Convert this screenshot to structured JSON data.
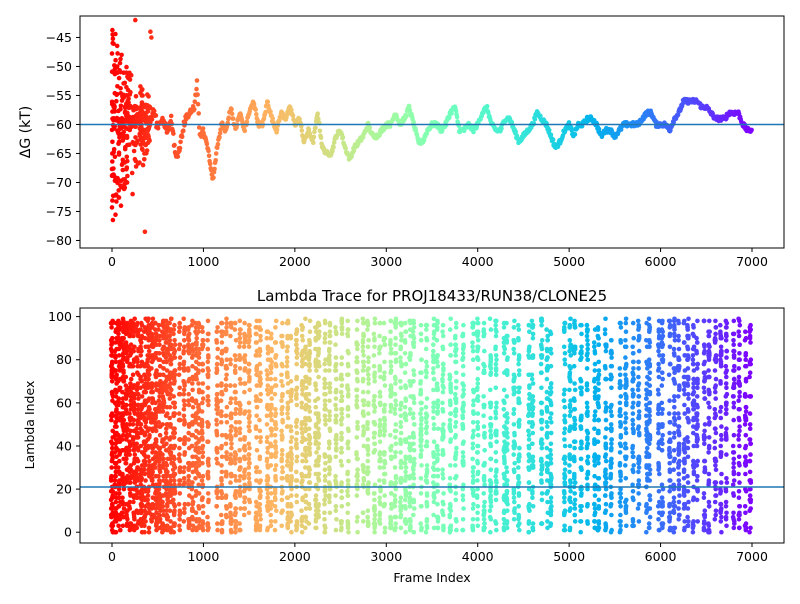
{
  "chart_data": [
    {
      "type": "scatter",
      "title": "",
      "xlabel": "",
      "ylabel": "ΔG (kT)",
      "xlim": [
        -350,
        7350
      ],
      "ylim": [
        -81.3,
        -41.3
      ],
      "xticks": [
        0,
        1000,
        2000,
        3000,
        4000,
        5000,
        6000,
        7000
      ],
      "yticks": [
        -80,
        -75,
        -70,
        -65,
        -60,
        -55,
        -50,
        -45
      ],
      "hline": -60,
      "hline_color": "#1f77b4",
      "colormap": "rainbow (reversed: red at frame 0, violet at frame 7000)",
      "x_range": [
        0,
        7000
      ],
      "trace": [
        [
          0,
          -60
        ],
        [
          50,
          -60
        ],
        [
          100,
          -60
        ],
        [
          150,
          -59
        ],
        [
          200,
          -60
        ],
        [
          250,
          -60
        ],
        [
          300,
          -58
        ],
        [
          350,
          -59
        ],
        [
          400,
          -61
        ],
        [
          450,
          -58
        ],
        [
          500,
          -60
        ],
        [
          550,
          -59
        ],
        [
          600,
          -61
        ],
        [
          650,
          -59
        ],
        [
          700,
          -66
        ],
        [
          750,
          -63
        ],
        [
          800,
          -59
        ],
        [
          850,
          -58
        ],
        [
          900,
          -57
        ],
        [
          930,
          -53
        ],
        [
          960,
          -62
        ],
        [
          1000,
          -61
        ],
        [
          1050,
          -64
        ],
        [
          1100,
          -70
        ],
        [
          1150,
          -64
        ],
        [
          1200,
          -60
        ],
        [
          1250,
          -61
        ],
        [
          1300,
          -57
        ],
        [
          1350,
          -61
        ],
        [
          1400,
          -58
        ],
        [
          1450,
          -61
        ],
        [
          1500,
          -58
        ],
        [
          1550,
          -56
        ],
        [
          1600,
          -60
        ],
        [
          1650,
          -60
        ],
        [
          1700,
          -56
        ],
        [
          1750,
          -59
        ],
        [
          1800,
          -61
        ],
        [
          1850,
          -58
        ],
        [
          1900,
          -59
        ],
        [
          1950,
          -57
        ],
        [
          2000,
          -60
        ],
        [
          2050,
          -59
        ],
        [
          2100,
          -63
        ],
        [
          2150,
          -61
        ],
        [
          2200,
          -63
        ],
        [
          2250,
          -58
        ],
        [
          2300,
          -64
        ],
        [
          2350,
          -65
        ],
        [
          2400,
          -65
        ],
        [
          2450,
          -62
        ],
        [
          2500,
          -61
        ],
        [
          2550,
          -64
        ],
        [
          2600,
          -66
        ],
        [
          2650,
          -64
        ],
        [
          2700,
          -63
        ],
        [
          2750,
          -62
        ],
        [
          2800,
          -60
        ],
        [
          2850,
          -62
        ],
        [
          2900,
          -62
        ],
        [
          2950,
          -61
        ],
        [
          3000,
          -60
        ],
        [
          3050,
          -60
        ],
        [
          3100,
          -58
        ],
        [
          3150,
          -60
        ],
        [
          3200,
          -59
        ],
        [
          3250,
          -57
        ],
        [
          3300,
          -60
        ],
        [
          3350,
          -63
        ],
        [
          3400,
          -63
        ],
        [
          3450,
          -61
        ],
        [
          3500,
          -60
        ],
        [
          3550,
          -60
        ],
        [
          3600,
          -61
        ],
        [
          3650,
          -60
        ],
        [
          3700,
          -58
        ],
        [
          3750,
          -57
        ],
        [
          3800,
          -61
        ],
        [
          3850,
          -61
        ],
        [
          3900,
          -60
        ],
        [
          3950,
          -61
        ],
        [
          4000,
          -60
        ],
        [
          4050,
          -58
        ],
        [
          4100,
          -57
        ],
        [
          4150,
          -60
        ],
        [
          4200,
          -61
        ],
        [
          4250,
          -61
        ],
        [
          4300,
          -59
        ],
        [
          4350,
          -59
        ],
        [
          4400,
          -61
        ],
        [
          4450,
          -63
        ],
        [
          4500,
          -62
        ],
        [
          4550,
          -61
        ],
        [
          4600,
          -60
        ],
        [
          4650,
          -58
        ],
        [
          4700,
          -59
        ],
        [
          4750,
          -60
        ],
        [
          4800,
          -62
        ],
        [
          4850,
          -64
        ],
        [
          4900,
          -63
        ],
        [
          4950,
          -61
        ],
        [
          5000,
          -60
        ],
        [
          5050,
          -62
        ],
        [
          5100,
          -60
        ],
        [
          5150,
          -60
        ],
        [
          5200,
          -59
        ],
        [
          5250,
          -59
        ],
        [
          5300,
          -60
        ],
        [
          5350,
          -62
        ],
        [
          5400,
          -61
        ],
        [
          5450,
          -61
        ],
        [
          5500,
          -62
        ],
        [
          5550,
          -61
        ],
        [
          5600,
          -60
        ],
        [
          5650,
          -60
        ],
        [
          5700,
          -60
        ],
        [
          5750,
          -60
        ],
        [
          5800,
          -59
        ],
        [
          5850,
          -58
        ],
        [
          5900,
          -58
        ],
        [
          5950,
          -60
        ],
        [
          6000,
          -60
        ],
        [
          6050,
          -60
        ],
        [
          6100,
          -61
        ],
        [
          6150,
          -59
        ],
        [
          6200,
          -58
        ],
        [
          6250,
          -56
        ],
        [
          6300,
          -56
        ],
        [
          6350,
          -56
        ],
        [
          6400,
          -56
        ],
        [
          6450,
          -57
        ],
        [
          6500,
          -57
        ],
        [
          6550,
          -58
        ],
        [
          6600,
          -59
        ],
        [
          6650,
          -59
        ],
        [
          6700,
          -59
        ],
        [
          6750,
          -58
        ],
        [
          6800,
          -58
        ],
        [
          6850,
          -58
        ],
        [
          6900,
          -60
        ],
        [
          6950,
          -61
        ],
        [
          7000,
          -61
        ]
      ],
      "early_scatter_y": [
        -42,
        -45,
        -50,
        -55,
        -60,
        -63,
        -66,
        -70,
        -74,
        -78.5,
        -55,
        -48,
        -44,
        -52,
        -58,
        -67,
        -72
      ]
    },
    {
      "type": "scatter",
      "title": "Lambda Trace for PROJ18433/RUN38/CLONE25",
      "xlabel": "Frame Index",
      "ylabel": "Lambda Index",
      "xlim": [
        -350,
        7350
      ],
      "ylim": [
        -5,
        104
      ],
      "xticks": [
        0,
        1000,
        2000,
        3000,
        4000,
        5000,
        6000,
        7000
      ],
      "yticks": [
        0,
        20,
        40,
        60,
        80,
        100
      ],
      "hline": 21,
      "hline_color": "#1f77b4",
      "colormap": "rainbow (reversed: red at frame 0, violet at frame 7000)",
      "y_range": [
        0,
        99
      ],
      "columns": [
        0,
        40,
        80,
        120,
        160,
        200,
        240,
        280,
        320,
        360,
        400,
        440,
        480,
        520,
        560,
        600,
        640,
        680,
        740,
        790,
        840,
        880,
        920,
        950,
        990,
        1050,
        1150,
        1200,
        1250,
        1300,
        1350,
        1400,
        1450,
        1500,
        1580,
        1620,
        1700,
        1740,
        1790,
        1860,
        1920,
        1960,
        2020,
        2080,
        2120,
        2160,
        2230,
        2260,
        2330,
        2380,
        2450,
        2510,
        2580,
        2680,
        2750,
        2800,
        2870,
        2930,
        2980,
        3050,
        3100,
        3160,
        3210,
        3260,
        3300,
        3380,
        3440,
        3520,
        3560,
        3620,
        3700,
        3760,
        3840,
        3950,
        4000,
        4070,
        4140,
        4200,
        4290,
        4320,
        4400,
        4450,
        4560,
        4600,
        4700,
        4760,
        4800,
        4950,
        5010,
        5060,
        5130,
        5200,
        5280,
        5320,
        5400,
        5460,
        5560,
        5620,
        5700,
        5760,
        5850,
        5880,
        5980,
        6020,
        6100,
        6150,
        6200,
        6260,
        6300,
        6360,
        6400,
        6480,
        6530,
        6600,
        6660,
        6720,
        6800,
        6860,
        6930,
        6980
      ]
    }
  ]
}
